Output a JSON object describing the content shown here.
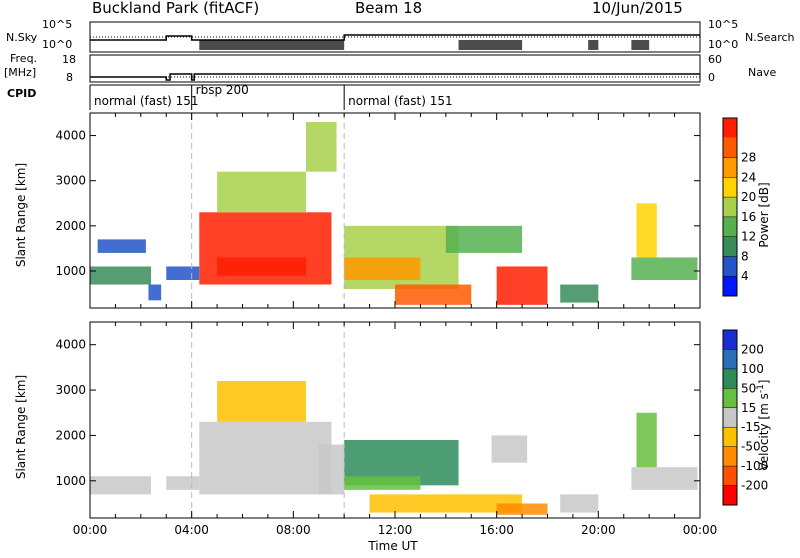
{
  "header": {
    "title": "Buckland Park (fitACF)",
    "beam": "Beam 18",
    "date": "10/Jun/2015"
  },
  "left_labels": {
    "nsky": "N.Sky",
    "freq": "Freq.",
    "freq_unit": "[MHz]",
    "cpid": "CPID"
  },
  "right_labels": {
    "nsearch": "N.Search",
    "nave": "Nave"
  },
  "small_ticks": {
    "nsky_top": "10^5",
    "nsky_bottom": "10^0",
    "nsearch_top": "10^5",
    "nsearch_bottom": "10^0",
    "freq_top": "18",
    "freq_bottom": "8",
    "nave_top": "60",
    "nave_bottom": "0"
  },
  "cpid_segments": [
    {
      "label": "normal (fast) 151",
      "start_hour": 0,
      "end_hour": 4
    },
    {
      "label": "rbsp 200",
      "start_hour": 4,
      "end_hour": 10
    },
    {
      "label": "normal (fast) 151",
      "start_hour": 10,
      "end_hour": 24
    }
  ],
  "colors": {
    "power_scale": [
      "#0018ff",
      "#2255c8",
      "#3a8c5a",
      "#56b050",
      "#a8d04a",
      "#ffd400",
      "#ff9a00",
      "#ff5a00",
      "#ff1e00"
    ],
    "velocity_scale": [
      "#1a2fd0",
      "#2a6db8",
      "#2d8c5a",
      "#66c040",
      "#c8c8c8",
      "#ffc000",
      "#ff8c00",
      "#ff5000",
      "#ff0000"
    ]
  },
  "chart_data": [
    {
      "type": "heatmap",
      "name": "power",
      "ylabel": "Slant Range [km]",
      "xlabel": "",
      "xlim": [
        0,
        24
      ],
      "ylim": [
        180,
        4500
      ],
      "yticks": [
        1000,
        2000,
        3000,
        4000
      ],
      "colorbar_label": "Power [dB]",
      "colorbar_ticks": [
        4,
        8,
        12,
        16,
        20,
        24,
        28
      ],
      "colorbar_range": [
        0,
        30
      ],
      "regions": [
        {
          "t0": 0.0,
          "t1": 2.4,
          "r0": 700,
          "r1": 1100,
          "v": 9
        },
        {
          "t0": 0.3,
          "t1": 2.2,
          "r0": 1400,
          "r1": 1700,
          "v": 6
        },
        {
          "t0": 2.3,
          "t1": 2.8,
          "r0": 350,
          "r1": 700,
          "v": 5
        },
        {
          "t0": 3.0,
          "t1": 4.3,
          "r0": 800,
          "r1": 1100,
          "v": 6
        },
        {
          "t0": 4.3,
          "t1": 9.5,
          "r0": 700,
          "r1": 2300,
          "v": 27
        },
        {
          "t0": 5.0,
          "t1": 8.5,
          "r0": 900,
          "r1": 1300,
          "v": 29
        },
        {
          "t0": 5.0,
          "t1": 8.5,
          "r0": 2300,
          "r1": 3200,
          "v": 16
        },
        {
          "t0": 8.5,
          "t1": 9.7,
          "r0": 3200,
          "r1": 4300,
          "v": 14
        },
        {
          "t0": 10.0,
          "t1": 14.5,
          "r0": 600,
          "r1": 2000,
          "v": 14
        },
        {
          "t0": 10.0,
          "t1": 13.0,
          "r0": 800,
          "r1": 1300,
          "v": 22
        },
        {
          "t0": 12.0,
          "t1": 15.0,
          "r0": 250,
          "r1": 700,
          "v": 24
        },
        {
          "t0": 14.0,
          "t1": 17.0,
          "r0": 1400,
          "r1": 2000,
          "v": 10
        },
        {
          "t0": 16.0,
          "t1": 18.0,
          "r0": 250,
          "r1": 1100,
          "v": 29
        },
        {
          "t0": 18.5,
          "t1": 20.0,
          "r0": 300,
          "r1": 700,
          "v": 8
        },
        {
          "t0": 21.3,
          "t1": 23.9,
          "r0": 800,
          "r1": 1300,
          "v": 10
        },
        {
          "t0": 21.5,
          "t1": 22.3,
          "r0": 1300,
          "r1": 2500,
          "v": 18
        }
      ]
    },
    {
      "type": "heatmap",
      "name": "velocity",
      "ylabel": "Slant Range [km]",
      "xlabel": "Time UT",
      "xlim": [
        0,
        24
      ],
      "ylim": [
        180,
        4500
      ],
      "yticks": [
        1000,
        2000,
        3000,
        4000
      ],
      "xtick_labels": [
        "00:00",
        "04:00",
        "08:00",
        "12:00",
        "16:00",
        "20:00",
        "00:00"
      ],
      "xtick_hours": [
        0,
        4,
        8,
        12,
        16,
        20,
        24
      ],
      "colorbar_label": "Velocity [m s^-1]",
      "colorbar_ticks": [
        200,
        100,
        50,
        15,
        -15,
        -50,
        -100,
        -200
      ],
      "regions": [
        {
          "t0": 0.0,
          "t1": 2.4,
          "r0": 700,
          "r1": 1100,
          "v": 0
        },
        {
          "t0": 3.0,
          "t1": 4.3,
          "r0": 800,
          "r1": 1100,
          "v": 0
        },
        {
          "t0": 4.3,
          "t1": 9.5,
          "r0": 700,
          "r1": 2300,
          "v": 10
        },
        {
          "t0": 5.0,
          "t1": 8.5,
          "r0": 2300,
          "r1": 3200,
          "v": -40
        },
        {
          "t0": 9.0,
          "t1": 10.0,
          "r0": 700,
          "r1": 1800,
          "v": 0
        },
        {
          "t0": 10.0,
          "t1": 14.5,
          "r0": 900,
          "r1": 1900,
          "v": 90
        },
        {
          "t0": 10.0,
          "t1": 13.0,
          "r0": 800,
          "r1": 1100,
          "v": 30
        },
        {
          "t0": 11.0,
          "t1": 17.0,
          "r0": 300,
          "r1": 700,
          "v": -45
        },
        {
          "t0": 16.0,
          "t1": 18.0,
          "r0": 250,
          "r1": 500,
          "v": -60
        },
        {
          "t0": 15.8,
          "t1": 17.2,
          "r0": 1400,
          "r1": 2000,
          "v": 0
        },
        {
          "t0": 18.5,
          "t1": 20.0,
          "r0": 300,
          "r1": 700,
          "v": 0
        },
        {
          "t0": 21.3,
          "t1": 23.9,
          "r0": 800,
          "r1": 1300,
          "v": 0
        },
        {
          "t0": 21.5,
          "t1": 22.3,
          "r0": 1300,
          "r1": 2500,
          "v": 30
        }
      ]
    }
  ]
}
